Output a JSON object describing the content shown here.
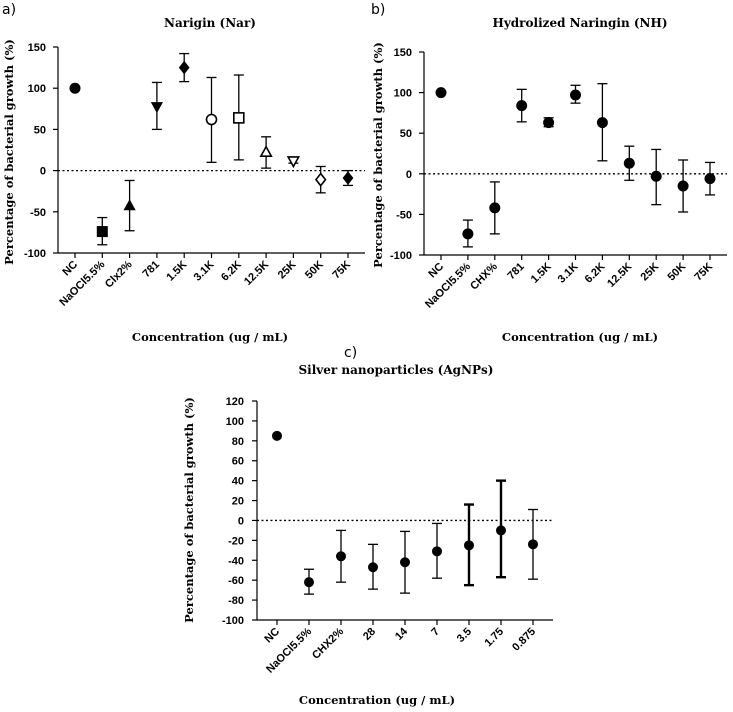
{
  "chart_data": [
    {
      "panel": "a)",
      "type": "scatter",
      "title": "Narigin (Nar)",
      "xlabel": "Concentration (ug / mL)",
      "ylabel": "Percentage of bacterial growth (%)",
      "ylim": [
        -100,
        150
      ],
      "yticks": [
        -100,
        -50,
        0,
        50,
        100,
        150
      ],
      "reference_line": 0,
      "categories": [
        "NC",
        "NaOCl5.5%",
        "Clx2%",
        "781",
        "1.5K",
        "3.1K",
        "6.2K",
        "12.5K",
        "25K",
        "50K",
        "75K"
      ],
      "markers": [
        "circle",
        "square",
        "triangle",
        "triangle-down",
        "diamond",
        "circle-open",
        "square-open",
        "triangle-open",
        "triangle-down-open",
        "diamond-open",
        "diamond"
      ],
      "values": [
        100,
        -74,
        -43,
        78,
        125,
        62,
        64,
        22,
        12,
        -11,
        -9
      ],
      "err_low": [
        null,
        -90,
        -73,
        50,
        108,
        10,
        13,
        3,
        9,
        -27,
        -18
      ],
      "err_high": [
        null,
        -57,
        -12,
        107,
        142,
        113,
        116,
        41,
        15,
        5,
        0
      ]
    },
    {
      "panel": "b)",
      "type": "scatter",
      "title": "Hydrolized Naringin (NH)",
      "xlabel": "Concentration (ug / mL)",
      "ylabel": "Percentage of bacterial growth (%)",
      "ylim": [
        -100,
        150
      ],
      "yticks": [
        -100,
        -50,
        0,
        50,
        100,
        150
      ],
      "reference_line": 0,
      "categories": [
        "NC",
        "NaOCl5.5%",
        "CHX%",
        "781",
        "1.5K",
        "3.1K",
        "6.2K",
        "12.5K",
        "25K",
        "50K",
        "75K"
      ],
      "markers": [
        "circle",
        "circle",
        "circle",
        "circle",
        "circle",
        "circle",
        "circle",
        "circle",
        "circle",
        "circle",
        "circle"
      ],
      "values": [
        100,
        -74,
        -42,
        84,
        63,
        97,
        63,
        13,
        -3,
        -15,
        -6
      ],
      "err_low": [
        null,
        -90,
        -74,
        64,
        58,
        87,
        16,
        -8,
        -38,
        -47,
        -26
      ],
      "err_high": [
        null,
        -57,
        -10,
        104,
        69,
        109,
        111,
        34,
        30,
        17,
        14
      ]
    },
    {
      "panel": "c)",
      "type": "scatter",
      "title": "Silver nanoparticles (AgNPs)",
      "xlabel": "Concentration (ug / mL)",
      "ylabel": "Percentage of bacterial growth (%)",
      "ylim": [
        -100,
        120
      ],
      "yticks": [
        -100,
        -80,
        -60,
        -40,
        -20,
        0,
        20,
        40,
        60,
        80,
        100,
        120
      ],
      "reference_line": 0,
      "categories": [
        "NC",
        "NaOCl5.5%",
        "CHX2%",
        "28",
        "14",
        "7",
        "3.5",
        "1.75",
        "0.875"
      ],
      "markers": [
        "circle",
        "circle",
        "circle",
        "circle",
        "circle",
        "circle",
        "circle",
        "circle",
        "circle"
      ],
      "values": [
        85,
        -62,
        -36,
        -47,
        -42,
        -31,
        -25,
        -10,
        -24
      ],
      "err_low": [
        null,
        -74,
        -62,
        -69,
        -73,
        -58,
        -65,
        -57,
        -59
      ],
      "err_high": [
        null,
        -49,
        -10,
        -24,
        -11,
        -3,
        16,
        40,
        11
      ]
    }
  ]
}
